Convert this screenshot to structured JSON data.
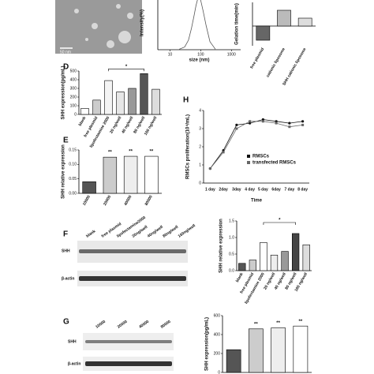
{
  "panels": [
    "D",
    "E",
    "F",
    "G",
    "H"
  ],
  "scale_bar": "50 nm",
  "blot_F": {
    "lanes": [
      "blank",
      "free plasmid",
      "lipofectamine2000",
      "20ng/well",
      "40ng/well",
      "80ng/well",
      "160ng/well"
    ],
    "rows": [
      "SHH",
      "β-actin"
    ]
  },
  "blot_G": {
    "lanes": [
      "10000",
      "20000",
      "40000",
      "80000"
    ],
    "rows": [
      "SHH",
      "β-actin"
    ]
  },
  "chart_data": [
    {
      "type": "line",
      "ylabel": "Intensity(%)",
      "xlabel": "size (nm)",
      "log_x": true,
      "x": [
        20,
        30,
        40,
        50,
        60,
        70,
        80,
        90,
        100,
        120,
        150,
        200,
        300
      ],
      "values": [
        1,
        5,
        18,
        40,
        62,
        82,
        95,
        98,
        92,
        72,
        45,
        15,
        1
      ],
      "color": "#555555",
      "xlim": [
        4,
        2000
      ],
      "ylim": [
        0,
        100
      ],
      "xticks": [
        10,
        100,
        1000
      ]
    },
    {
      "type": "bar",
      "ylabel": "Gelation time(min)",
      "categories": [
        "free plasmid",
        "cationic liposome",
        "SHH cationic liposome"
      ],
      "values": [
        -18,
        20,
        10
      ],
      "colors": [
        "#666666",
        "#bbbbbb",
        "#dddddd"
      ],
      "ylim": [
        -25,
        30
      ]
    },
    {
      "type": "bar",
      "ylabel": "SHH expression(pg/mL)",
      "categories": [
        "blank",
        "free plasmid",
        "lipofectamine 2000",
        "20 ng/well",
        "40 ng/well",
        "80 ng/well",
        "160 ng/well"
      ],
      "values": [
        70,
        165,
        390,
        260,
        300,
        470,
        290
      ],
      "colors": [
        "#ffffff",
        "#cccccc",
        "#f4f4f4",
        "#e6e6e6",
        "#999999",
        "#555555",
        "#dddddd"
      ],
      "ylim": [
        0,
        500
      ],
      "yticks": [
        0,
        100,
        200,
        300,
        400,
        500
      ],
      "annotations": [
        {
          "text": "*",
          "from": 2,
          "to": 5
        }
      ]
    },
    {
      "type": "bar",
      "ylabel": "SHH relative expression",
      "categories": [
        "10000",
        "20000",
        "40000",
        "80000"
      ],
      "values": [
        0.04,
        0.125,
        0.128,
        0.128
      ],
      "colors": [
        "#555555",
        "#cccccc",
        "#eeeeee",
        "#ffffff"
      ],
      "ylim": [
        0,
        0.15
      ],
      "yticks": [
        {
          "value": 0,
          "label": "0.00"
        },
        0.05,
        {
          "value": 0.1,
          "label": "0.10"
        },
        0.15
      ],
      "annotations": [
        {
          "text": "**",
          "from": 1,
          "to": 1
        },
        {
          "text": "**",
          "from": 2,
          "to": 2
        },
        {
          "text": "**",
          "from": 3,
          "to": 3
        }
      ]
    },
    {
      "type": "line",
      "ylabel": "RMSCs proliferation(10⁴/mL)",
      "xlabel": "Time",
      "categories": [
        "1 day",
        "2day",
        "3day",
        "4 day",
        "5 day",
        "6day",
        "7 day",
        "8 day"
      ],
      "series": [
        {
          "name": "RMSCs",
          "color": "#111111",
          "values": [
            0.8,
            1.8,
            3.2,
            3.3,
            3.5,
            3.4,
            3.3,
            3.4
          ]
        },
        {
          "name": "transfected RMSCs",
          "color": "#666666",
          "values": [
            0.8,
            1.7,
            3.0,
            3.4,
            3.4,
            3.3,
            3.1,
            3.2
          ]
        }
      ],
      "ylim": [
        0,
        4
      ],
      "yticks": [
        0,
        1,
        2,
        3,
        4
      ]
    },
    {
      "type": "bar",
      "ylabel": "SHH relative expression",
      "categories": [
        "blank",
        "free plasmid",
        "lipofectamine 2000",
        "20 ng/well",
        "40 ng/well",
        "80 ng/well",
        "160 ng/well"
      ],
      "values": [
        0.22,
        0.32,
        0.85,
        0.47,
        0.58,
        1.12,
        0.78
      ],
      "colors": [
        "#555555",
        "#cccccc",
        "#ffffff",
        "#eeeeee",
        "#999999",
        "#444444",
        "#dddddd"
      ],
      "ylim": [
        0,
        1.5
      ],
      "yticks": [
        {
          "value": 0,
          "label": "0.0"
        },
        0.5,
        {
          "value": 1,
          "label": "1.0"
        },
        1.5
      ],
      "annotations": [
        {
          "text": "*",
          "from": 2,
          "to": 5
        }
      ]
    },
    {
      "type": "bar",
      "ylabel": "SHH expression(pg/mL)",
      "categories": [
        "10000",
        "20000",
        "40000",
        "80000"
      ],
      "values": [
        240,
        460,
        470,
        490
      ],
      "colors": [
        "#555555",
        "#cccccc",
        "#eeeeee",
        "#ffffff"
      ],
      "ylim": [
        0,
        600
      ],
      "yticks": [
        0,
        200,
        400,
        600
      ],
      "annotations": [
        {
          "text": "**",
          "from": 1,
          "to": 1
        },
        {
          "text": "**",
          "from": 2,
          "to": 2
        },
        {
          "text": "**",
          "from": 3,
          "to": 3
        }
      ]
    }
  ]
}
